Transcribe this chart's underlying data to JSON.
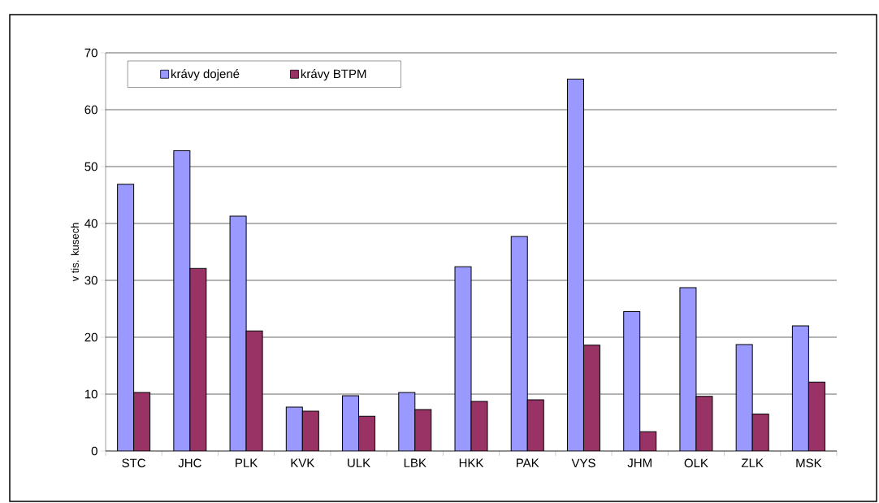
{
  "chart_data": {
    "type": "bar",
    "ylabel": "v tis. kusech",
    "categories": [
      "STC",
      "JHC",
      "PLK",
      "KVK",
      "ULK",
      "LBK",
      "HKK",
      "PAK",
      "VYS",
      "JHM",
      "OLK",
      "ZLK",
      "MSK"
    ],
    "series": [
      {
        "name": "krávy dojené",
        "color": "#9999ff",
        "values": [
          46.9,
          52.8,
          41.3,
          7.7,
          9.7,
          10.3,
          32.4,
          37.7,
          65.4,
          24.5,
          28.7,
          18.7,
          22.0
        ]
      },
      {
        "name": "krávy BTPM",
        "color": "#993366",
        "values": [
          10.3,
          32.1,
          21.1,
          7.0,
          6.1,
          7.3,
          8.7,
          9.0,
          18.6,
          3.4,
          9.6,
          6.5,
          12.1
        ]
      }
    ],
    "ylim": [
      0,
      70
    ],
    "yticks": [
      0,
      10,
      20,
      30,
      40,
      50,
      60,
      70
    ],
    "grid": "y",
    "legend": "top"
  }
}
